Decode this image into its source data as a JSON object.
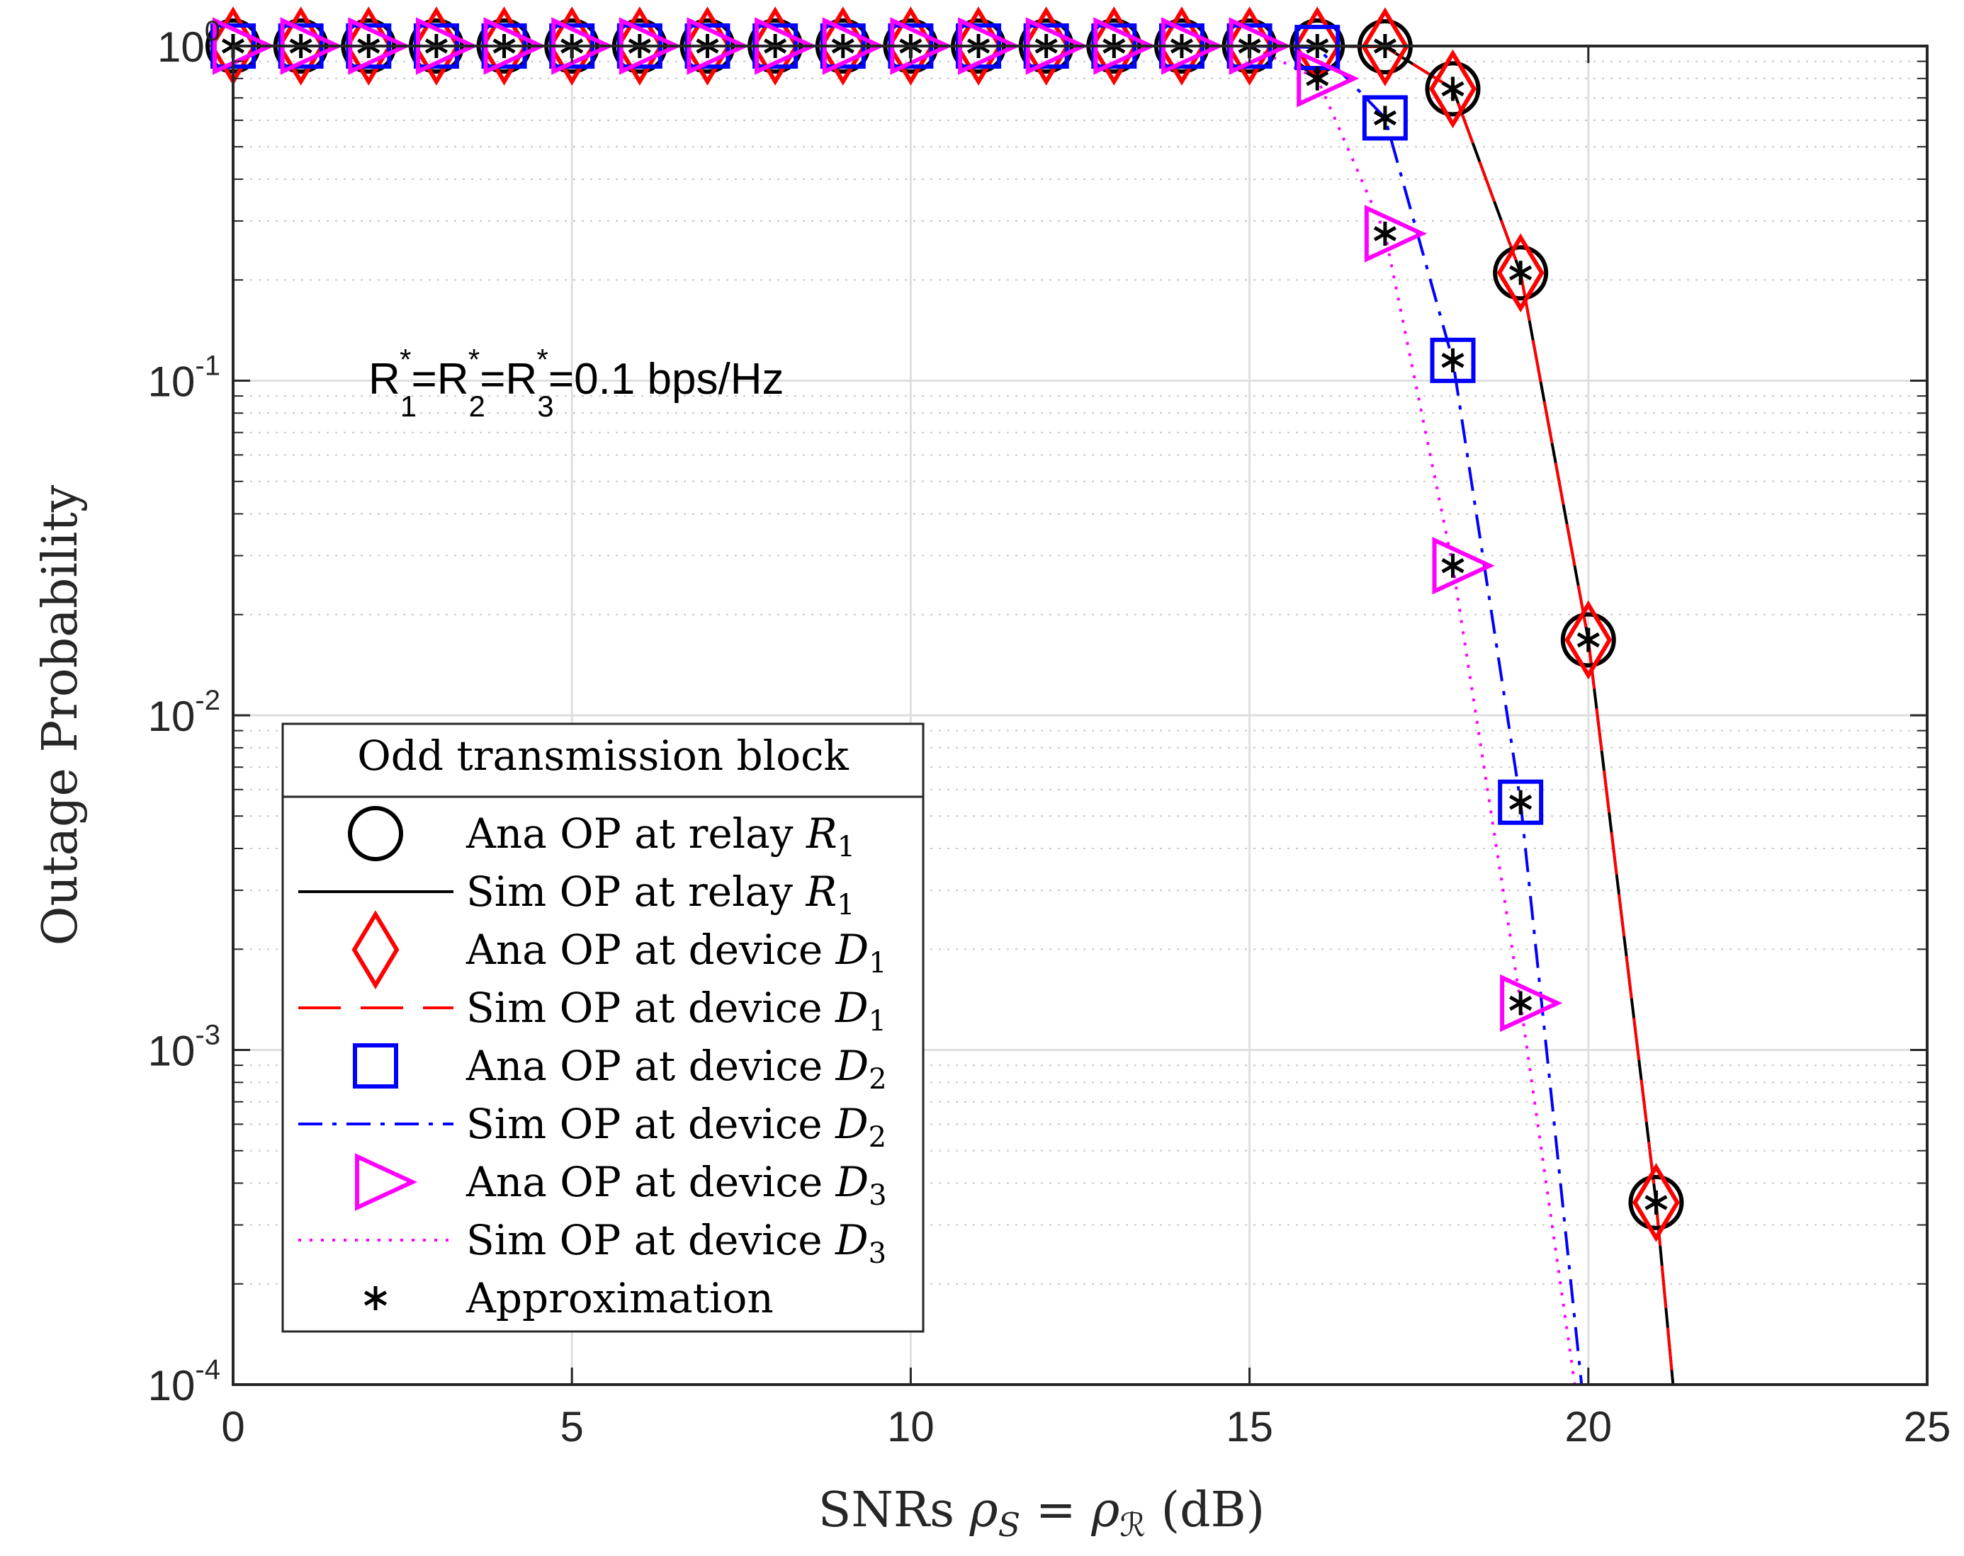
{
  "chart_data": {
    "type": "line",
    "title": "",
    "xlabel": "SNRs ρS = ρℛ (dB)",
    "xlabel_parts": {
      "pre": "SNRs ",
      "rho1": "ρ",
      "sub1": "S",
      "eq": " = ",
      "rho2": "ρ",
      "sub2": "ℛ",
      "post": " (dB)"
    },
    "ylabel": "Outage Probability",
    "x_scale": "linear",
    "y_scale": "log",
    "xlim": [
      0,
      25
    ],
    "ylim": [
      0.0001,
      1
    ],
    "x_ticks": [
      0,
      5,
      10,
      15,
      20,
      25
    ],
    "y_ticks": [
      {
        "value": 1,
        "base": "10",
        "exp": "0"
      },
      {
        "value": 0.1,
        "base": "10",
        "exp": "-1"
      },
      {
        "value": 0.01,
        "base": "10",
        "exp": "-2"
      },
      {
        "value": 0.001,
        "base": "10",
        "exp": "-3"
      },
      {
        "value": 0.0001,
        "base": "10",
        "exp": "-4"
      }
    ],
    "grid": true,
    "legend_position": "bottom-left",
    "annotation": {
      "text": "R1*=R2*=R3*=0.1 bps/Hz",
      "parts": [
        "R",
        "1",
        "*",
        "=R",
        "2",
        "*",
        "=R",
        "3",
        "*",
        "=0.1 bps/Hz"
      ],
      "x": 2.0,
      "y": 0.1
    },
    "legend_title": "Odd transmission block",
    "series": [
      {
        "name": "Ana OP at relay R1",
        "label": "Ana OP at relay ",
        "var": "R",
        "sub": "1",
        "kind": "marker",
        "marker": "circle",
        "color": "#000000",
        "x": [
          0,
          1,
          2,
          3,
          4,
          5,
          6,
          7,
          8,
          9,
          10,
          11,
          12,
          13,
          14,
          15,
          16,
          17,
          18,
          19,
          20,
          21
        ],
        "y": [
          1,
          1,
          1,
          1,
          1,
          1,
          1,
          1,
          1,
          1,
          1,
          1,
          1,
          1,
          1,
          1,
          1,
          0.995,
          0.745,
          0.21,
          0.0168,
          0.00035
        ]
      },
      {
        "name": "Sim OP at relay R1",
        "label": "Sim OP at relay ",
        "var": "R",
        "sub": "1",
        "kind": "line",
        "dash": "solid",
        "color": "#000000",
        "x": [
          0,
          1,
          2,
          3,
          4,
          5,
          6,
          7,
          8,
          9,
          10,
          11,
          12,
          13,
          14,
          15,
          16,
          17,
          18,
          19,
          20,
          21,
          21.25
        ],
        "y": [
          1,
          1,
          1,
          1,
          1,
          1,
          1,
          1,
          1,
          1,
          1,
          1,
          1,
          1,
          1,
          1,
          1,
          0.995,
          0.745,
          0.21,
          0.0168,
          0.00035,
          0.0001
        ]
      },
      {
        "name": "Ana OP at device D1",
        "label": "Ana OP at device ",
        "var": "D",
        "sub": "1",
        "kind": "marker",
        "marker": "diamond",
        "color": "#ff0000",
        "x": [
          0,
          1,
          2,
          3,
          4,
          5,
          6,
          7,
          8,
          9,
          10,
          11,
          12,
          13,
          14,
          15,
          16,
          17,
          18,
          19,
          20,
          21
        ],
        "y": [
          1,
          1,
          1,
          1,
          1,
          1,
          1,
          1,
          1,
          1,
          1,
          1,
          1,
          1,
          1,
          1,
          1,
          0.995,
          0.745,
          0.21,
          0.0168,
          0.00035
        ]
      },
      {
        "name": "Sim OP at device D1",
        "label": "Sim OP at device ",
        "var": "D",
        "sub": "1",
        "kind": "line",
        "dash": "dashed",
        "color": "#ff0000",
        "x": [
          0,
          1,
          2,
          3,
          4,
          5,
          6,
          7,
          8,
          9,
          10,
          11,
          12,
          13,
          14,
          15,
          16,
          17,
          18,
          19,
          20,
          21,
          21.25
        ],
        "y": [
          1,
          1,
          1,
          1,
          1,
          1,
          1,
          1,
          1,
          1,
          1,
          1,
          1,
          1,
          1,
          1,
          1,
          0.995,
          0.745,
          0.21,
          0.0168,
          0.00035,
          0.0001
        ]
      },
      {
        "name": "Ana OP at device D2",
        "label": "Ana OP at device ",
        "var": "D",
        "sub": "2",
        "kind": "marker",
        "marker": "square",
        "color": "#0000ff",
        "x": [
          0,
          1,
          2,
          3,
          4,
          5,
          6,
          7,
          8,
          9,
          10,
          11,
          12,
          13,
          14,
          15,
          16,
          17,
          18,
          19
        ],
        "y": [
          1,
          1,
          1,
          1,
          1,
          1,
          1,
          1,
          1,
          1,
          1,
          1,
          1,
          1,
          1,
          1,
          0.99,
          0.61,
          0.115,
          0.0055
        ]
      },
      {
        "name": "Sim OP at device D2",
        "label": "Sim OP at device ",
        "var": "D",
        "sub": "2",
        "kind": "line",
        "dash": "dashdot",
        "color": "#0000ff",
        "x": [
          0,
          1,
          2,
          3,
          4,
          5,
          6,
          7,
          8,
          9,
          10,
          11,
          12,
          13,
          14,
          15,
          16,
          17,
          18,
          19,
          19.9
        ],
        "y": [
          1,
          1,
          1,
          1,
          1,
          1,
          1,
          1,
          1,
          1,
          1,
          1,
          1,
          1,
          1,
          1,
          0.99,
          0.61,
          0.115,
          0.0055,
          0.0001
        ]
      },
      {
        "name": "Ana OP at device D3",
        "label": "Ana OP at device ",
        "var": "D",
        "sub": "3",
        "kind": "marker",
        "marker": "triangle-right",
        "color": "#ff00ff",
        "x": [
          0,
          1,
          2,
          3,
          4,
          5,
          6,
          7,
          8,
          9,
          10,
          11,
          12,
          13,
          14,
          15,
          16,
          17,
          18,
          19
        ],
        "y": [
          1,
          1,
          1,
          1,
          1,
          1,
          1,
          1,
          1,
          1,
          1,
          1,
          1,
          1,
          1,
          1,
          0.8,
          0.275,
          0.028,
          0.00138
        ]
      },
      {
        "name": "Sim OP at device D3",
        "label": "Sim OP at device ",
        "var": "D",
        "sub": "3",
        "kind": "line",
        "dash": "dotted",
        "color": "#ff00ff",
        "x": [
          0,
          1,
          2,
          3,
          4,
          5,
          6,
          7,
          8,
          9,
          10,
          11,
          12,
          13,
          14,
          15,
          16,
          17,
          18,
          19,
          19.8
        ],
        "y": [
          1,
          1,
          1,
          1,
          1,
          1,
          1,
          1,
          1,
          1,
          1,
          1,
          1,
          1,
          1,
          1,
          0.8,
          0.275,
          0.028,
          0.00138,
          0.0001
        ]
      },
      {
        "name": "Approximation",
        "label": "Approximation",
        "var": "",
        "sub": "",
        "kind": "marker",
        "marker": "asterisk",
        "color": "#000000",
        "x": [
          0,
          1,
          2,
          3,
          4,
          5,
          6,
          7,
          8,
          9,
          10,
          11,
          12,
          13,
          14,
          15,
          16,
          16,
          17,
          17,
          17,
          18,
          18,
          18,
          19,
          19,
          19,
          20,
          21
        ],
        "y": [
          1,
          1,
          1,
          1,
          1,
          1,
          1,
          1,
          1,
          1,
          1,
          1,
          1,
          1,
          1,
          1,
          1,
          0.8,
          1,
          0.61,
          0.275,
          0.745,
          0.115,
          0.028,
          0.21,
          0.0055,
          0.00138,
          0.0168,
          0.00035
        ]
      }
    ]
  }
}
